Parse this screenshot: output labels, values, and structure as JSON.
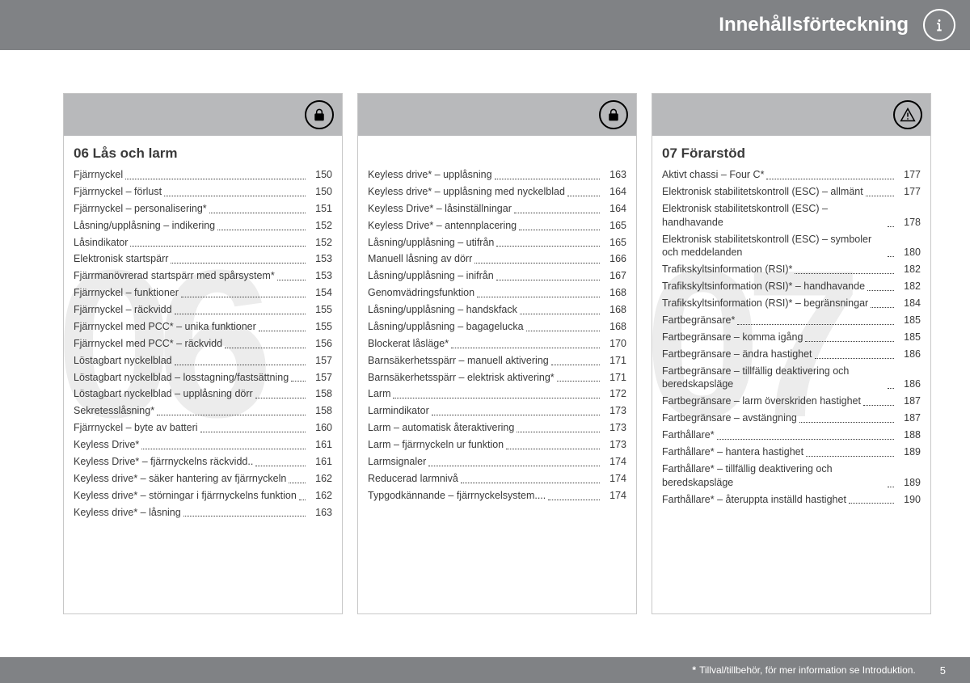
{
  "header": {
    "title": "Innehållsförteckning"
  },
  "columns": [
    {
      "icon": "lock",
      "watermark": "06",
      "heading": "06 Lås och larm",
      "entries": [
        {
          "label": "Fjärrnyckel",
          "page": "150"
        },
        {
          "label": "Fjärrnyckel – förlust",
          "page": "150"
        },
        {
          "label": "Fjärrnyckel – personalisering*",
          "page": "151"
        },
        {
          "label": "Låsning/upplåsning – indikering",
          "page": "152"
        },
        {
          "label": "Låsindikator",
          "page": "152"
        },
        {
          "label": "Elektronisk startspärr",
          "page": "153"
        },
        {
          "label": "Fjärrmanövrerad startspärr med spårsystem*",
          "page": "153"
        },
        {
          "label": "Fjärrnyckel – funktioner",
          "page": "154"
        },
        {
          "label": "Fjärrnyckel – räckvidd",
          "page": "155"
        },
        {
          "label": "Fjärrnyckel med PCC* – unika funktioner",
          "page": "155"
        },
        {
          "label": "Fjärrnyckel med PCC* – räckvidd",
          "page": "156"
        },
        {
          "label": "Löstagbart nyckelblad",
          "page": "157"
        },
        {
          "label": "Löstagbart nyckelblad – losstagning/fastsättning",
          "page": "157"
        },
        {
          "label": "Löstagbart nyckelblad – upplåsning dörr",
          "page": "158"
        },
        {
          "label": "Sekretesslåsning*",
          "page": "158"
        },
        {
          "label": "Fjärrnyckel – byte av batteri",
          "page": "160"
        },
        {
          "label": "Keyless Drive*",
          "page": "161"
        },
        {
          "label": "Keyless Drive* – fjärrnyckelns räckvidd..",
          "page": "161"
        },
        {
          "label": "Keyless drive* – säker hantering av fjärrnyckeln",
          "page": "162"
        },
        {
          "label": "Keyless drive* – störningar i fjärrnyckelns funktion",
          "page": "162"
        },
        {
          "label": "Keyless drive* – låsning",
          "page": "163"
        }
      ]
    },
    {
      "icon": "lock",
      "watermark": "",
      "heading": "",
      "entries": [
        {
          "label": "Keyless drive* – upplåsning",
          "page": "163"
        },
        {
          "label": "Keyless drive* – upplåsning med nyckelblad",
          "page": "164"
        },
        {
          "label": "Keyless Drive* – låsinställningar",
          "page": "164"
        },
        {
          "label": "Keyless Drive* – antennplacering",
          "page": "165"
        },
        {
          "label": "Låsning/upplåsning – utifrån",
          "page": "165"
        },
        {
          "label": "Manuell låsning av dörr",
          "page": "166"
        },
        {
          "label": "Låsning/upplåsning – inifrån",
          "page": "167"
        },
        {
          "label": "Genomvädringsfunktion",
          "page": "168"
        },
        {
          "label": "Låsning/upplåsning – handskfack",
          "page": "168"
        },
        {
          "label": "Låsning/upplåsning – bagagelucka",
          "page": "168"
        },
        {
          "label": "Blockerat låsläge*",
          "page": "170"
        },
        {
          "label": "Barnsäkerhetsspärr – manuell aktivering",
          "page": "171"
        },
        {
          "label": "Barnsäkerhetsspärr – elektrisk aktivering*",
          "page": "171"
        },
        {
          "label": "Larm",
          "page": "172"
        },
        {
          "label": "Larmindikator",
          "page": "173"
        },
        {
          "label": "Larm – automatisk återaktivering",
          "page": "173"
        },
        {
          "label": "Larm – fjärrnyckeln ur funktion",
          "page": "173"
        },
        {
          "label": "Larmsignaler",
          "page": "174"
        },
        {
          "label": "Reducerad larmnivå",
          "page": "174"
        },
        {
          "label": "Typgodkännande – fjärrnyckelsystem....",
          "page": "174"
        }
      ]
    },
    {
      "icon": "warning",
      "watermark": "07",
      "heading": "07 Förarstöd",
      "entries": [
        {
          "label": "Aktivt chassi – Four C*",
          "page": "177"
        },
        {
          "label": "Elektronisk stabilitetskontroll (ESC) – allmänt",
          "page": "177"
        },
        {
          "label": "Elektronisk stabilitetskontroll (ESC) – handhavande",
          "page": "178"
        },
        {
          "label": "Elektronisk stabilitetskontroll (ESC) – symboler och meddelanden",
          "page": "180"
        },
        {
          "label": "Trafikskyltsinformation (RSI)*",
          "page": "182"
        },
        {
          "label": "Trafikskyltsinformation (RSI)* – handhavande",
          "page": "182"
        },
        {
          "label": "Trafikskyltsinformation (RSI)* – begränsningar",
          "page": "184"
        },
        {
          "label": "Fartbegränsare*",
          "page": "185"
        },
        {
          "label": "Fartbegränsare – komma igång",
          "page": "185"
        },
        {
          "label": "Fartbegränsare – ändra hastighet",
          "page": "186"
        },
        {
          "label": "Fartbegränsare – tillfällig deaktivering och beredskapsläge",
          "page": "186"
        },
        {
          "label": "Fartbegränsare – larm överskriden hastighet",
          "page": "187"
        },
        {
          "label": "Fartbegränsare – avstängning",
          "page": "187"
        },
        {
          "label": "Farthållare*",
          "page": "188"
        },
        {
          "label": "Farthållare* – hantera hastighet",
          "page": "189"
        },
        {
          "label": "Farthållare* – tillfällig deaktivering och beredskapsläge",
          "page": "189"
        },
        {
          "label": "Farthållare* – återuppta inställd hastighet",
          "page": "190"
        }
      ]
    }
  ],
  "footer": {
    "note": "Tillval/tillbehör, för mer information se Introduktion.",
    "page": "5"
  }
}
